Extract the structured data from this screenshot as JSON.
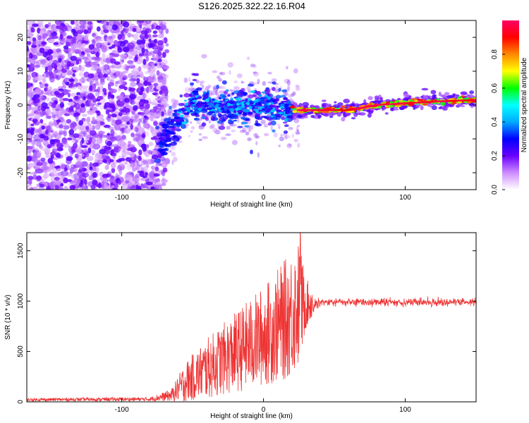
{
  "title": "S126.2025.322.22.16.R04",
  "chart_data": [
    {
      "type": "heatmap",
      "xlabel": "Height of straight line (km)",
      "ylabel": "Frequency (Hz)",
      "xlim": [
        -167,
        150
      ],
      "ylim": [
        -25,
        25
      ],
      "xticks": [
        -100,
        0,
        100
      ],
      "yticks": [
        -20,
        -10,
        0,
        10,
        20
      ],
      "colorbar": {
        "label": "Normalized spectral amplitude",
        "range": [
          0,
          1
        ],
        "ticks": [
          0.0,
          0.2,
          0.4,
          0.6,
          0.8
        ],
        "colors": [
          "#ffffff",
          "#ce8cff",
          "#6a00ff",
          "#0000ff",
          "#00aaff",
          "#00ffff",
          "#00ff00",
          "#ffff00",
          "#ff8800",
          "#ff0000",
          "#ff0066"
        ]
      },
      "ridge": [
        {
          "x": -70,
          "y": -11
        },
        {
          "x": -62,
          "y": -5
        },
        {
          "x": -50,
          "y": 1
        },
        {
          "x": -35,
          "y": 0
        },
        {
          "x": -20,
          "y": -1
        },
        {
          "x": 0,
          "y": 0
        },
        {
          "x": 15,
          "y": -1
        },
        {
          "x": 22,
          "y": -1.5
        },
        {
          "x": 60,
          "y": -1.5
        },
        {
          "x": 80,
          "y": 0
        },
        {
          "x": 100,
          "y": 0.5
        },
        {
          "x": 120,
          "y": 1
        },
        {
          "x": 150,
          "y": 1.5
        }
      ]
    },
    {
      "type": "line",
      "xlabel": "Height of straight line (km)",
      "ylabel": "SNR (10 * v/v)",
      "xlim": [
        -167,
        150
      ],
      "ylim": [
        0,
        1680
      ],
      "xticks": [
        -100,
        0,
        100
      ],
      "yticks": [
        0,
        500,
        1000,
        1500
      ],
      "color": "#ee3333",
      "envelope": [
        {
          "x": -167,
          "base": 20,
          "spread": 15
        },
        {
          "x": -80,
          "base": 25,
          "spread": 20
        },
        {
          "x": -65,
          "base": 60,
          "spread": 60
        },
        {
          "x": -55,
          "base": 180,
          "spread": 200
        },
        {
          "x": -40,
          "base": 300,
          "spread": 300
        },
        {
          "x": -20,
          "base": 450,
          "spread": 400
        },
        {
          "x": 0,
          "base": 600,
          "spread": 500
        },
        {
          "x": 15,
          "base": 750,
          "spread": 600
        },
        {
          "x": 25,
          "base": 900,
          "spread": 650
        },
        {
          "x": 30,
          "base": 950,
          "spread": 250
        },
        {
          "x": 40,
          "base": 990,
          "spread": 50
        },
        {
          "x": 150,
          "base": 990,
          "spread": 50
        }
      ],
      "peak": {
        "x": 26,
        "y": 1680
      }
    }
  ]
}
